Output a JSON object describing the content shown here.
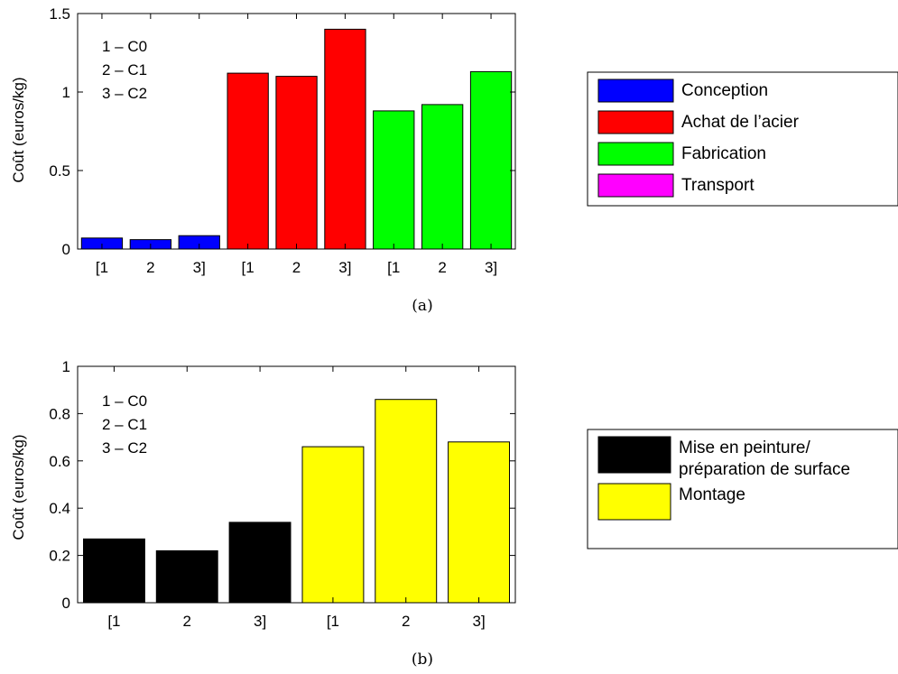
{
  "chart_data": [
    {
      "type": "bar",
      "caption": "(a)",
      "ylabel": "Coût (euros/kg)",
      "ylim": [
        0,
        1.5
      ],
      "yticks": [
        "0",
        "0.5",
        "1",
        "1.5"
      ],
      "categories": [
        "[1",
        "2",
        "3]",
        "[1",
        "2",
        "3]",
        "[1",
        "2",
        "3]"
      ],
      "values": [
        0.07,
        0.06,
        0.085,
        1.12,
        1.1,
        1.4,
        0.88,
        0.92,
        1.13
      ],
      "bar_colors": [
        "#0000ff",
        "#0000ff",
        "#0000ff",
        "#ff0000",
        "#ff0000",
        "#ff0000",
        "#00ff00",
        "#00ff00",
        "#00ff00"
      ],
      "annotations": [
        "1 – C0",
        "2 – C1",
        "3 – C2"
      ],
      "legend": [
        {
          "label": "Conception",
          "color": "#0000ff"
        },
        {
          "label": "Achat de l’acier",
          "color": "#ff0000"
        },
        {
          "label": "Fabrication",
          "color": "#00ff00"
        },
        {
          "label": "Transport",
          "color": "#ff00ff"
        }
      ],
      "legend_position": "right"
    },
    {
      "type": "bar",
      "caption": "(b)",
      "ylabel": "Coût (euros/kg)",
      "ylim": [
        0,
        1
      ],
      "yticks": [
        "0",
        "0.2",
        "0.4",
        "0.6",
        "0.8",
        "1"
      ],
      "categories": [
        "[1",
        "2",
        "3]",
        "[1",
        "2",
        "3]"
      ],
      "values": [
        0.27,
        0.22,
        0.34,
        0.66,
        0.86,
        0.68
      ],
      "bar_colors": [
        "#000000",
        "#000000",
        "#000000",
        "#ffff00",
        "#ffff00",
        "#ffff00"
      ],
      "annotations": [
        "1 – C0",
        "2 – C1",
        "3 – C2"
      ],
      "legend": [
        {
          "label": "Mise en peinture/ préparation de surface",
          "label_lines": [
            "Mise en peinture/",
            "préparation de surface"
          ],
          "color": "#000000"
        },
        {
          "label": "Montage",
          "label_lines": [
            "Montage"
          ],
          "color": "#ffff00"
        }
      ],
      "legend_position": "right"
    }
  ]
}
